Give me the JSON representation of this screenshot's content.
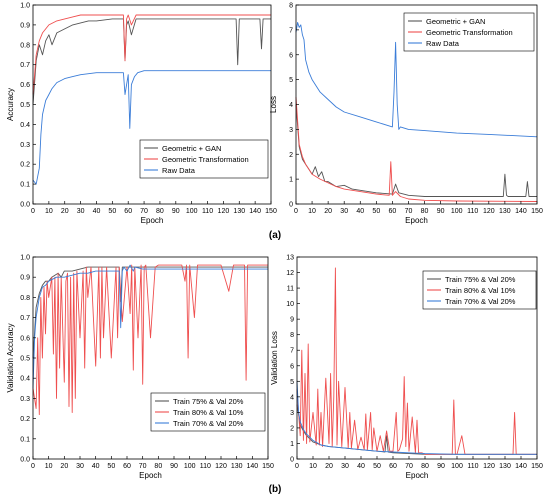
{
  "panel_labels": [
    "(a)",
    "(b)"
  ],
  "chart_data": [
    {
      "type": "line",
      "xlabel": "Epoch",
      "ylabel": "Accuracy",
      "xlim": [
        0,
        150
      ],
      "ylim": [
        0.0,
        1.0
      ],
      "xticks": [
        0,
        10,
        20,
        30,
        40,
        50,
        60,
        70,
        80,
        90,
        100,
        110,
        120,
        130,
        140,
        150
      ],
      "yticks": [
        0.0,
        0.1,
        0.2,
        0.3,
        0.4,
        0.5,
        0.6,
        0.7,
        0.8,
        0.9,
        1.0
      ],
      "ytick_labels": [
        "0.0",
        "0.1",
        "0.2",
        "0.3",
        "0.4",
        "0.5",
        "0.6",
        "0.7",
        "0.8",
        "0.9",
        "1.0"
      ],
      "legend_position": "bottom-right",
      "series": [
        {
          "name": "Geometric + GAN",
          "color": "#555555",
          "x": [
            0,
            2,
            4,
            6,
            8,
            10,
            12,
            15,
            20,
            25,
            30,
            35,
            40,
            50,
            57,
            58,
            59,
            60,
            62,
            65,
            70,
            80,
            90,
            100,
            110,
            120,
            128,
            129,
            130,
            132,
            140,
            143,
            144,
            145,
            148,
            150
          ],
          "y": [
            0.5,
            0.72,
            0.8,
            0.75,
            0.82,
            0.85,
            0.8,
            0.86,
            0.88,
            0.9,
            0.91,
            0.92,
            0.92,
            0.93,
            0.93,
            0.72,
            0.9,
            0.92,
            0.85,
            0.93,
            0.93,
            0.93,
            0.93,
            0.93,
            0.93,
            0.93,
            0.93,
            0.7,
            0.93,
            0.93,
            0.93,
            0.93,
            0.78,
            0.93,
            0.93,
            0.93
          ]
        },
        {
          "name": "Geometric Transformation",
          "color": "#ef4f4f",
          "x": [
            0,
            2,
            4,
            6,
            8,
            10,
            15,
            20,
            25,
            30,
            40,
            50,
            57,
            58,
            59,
            60,
            62,
            65,
            70,
            80,
            100,
            130,
            150
          ],
          "y": [
            0.55,
            0.75,
            0.82,
            0.86,
            0.88,
            0.9,
            0.92,
            0.93,
            0.94,
            0.95,
            0.95,
            0.95,
            0.95,
            0.72,
            0.93,
            0.95,
            0.9,
            0.95,
            0.95,
            0.95,
            0.95,
            0.95,
            0.95
          ]
        },
        {
          "name": "Raw Data",
          "color": "#3b7dd8",
          "x": [
            0,
            2,
            4,
            5,
            6,
            8,
            10,
            12,
            15,
            20,
            25,
            30,
            40,
            50,
            57,
            58,
            60,
            61,
            62,
            64,
            66,
            70,
            80,
            100,
            150
          ],
          "y": [
            0.12,
            0.1,
            0.18,
            0.35,
            0.45,
            0.52,
            0.55,
            0.58,
            0.61,
            0.63,
            0.64,
            0.65,
            0.66,
            0.66,
            0.66,
            0.55,
            0.65,
            0.38,
            0.6,
            0.64,
            0.66,
            0.67,
            0.67,
            0.67,
            0.67
          ]
        }
      ]
    },
    {
      "type": "line",
      "xlabel": "Epoch",
      "ylabel": "Loss",
      "xlim": [
        0,
        150
      ],
      "ylim": [
        0,
        8
      ],
      "xticks": [
        0,
        10,
        20,
        30,
        40,
        50,
        60,
        70,
        80,
        90,
        100,
        110,
        120,
        130,
        140,
        150
      ],
      "yticks": [
        0,
        1,
        2,
        3,
        4,
        5,
        6,
        7,
        8
      ],
      "ytick_labels": [
        "0",
        "1",
        "2",
        "3",
        "4",
        "5",
        "6",
        "7",
        "8"
      ],
      "legend_position": "top-right",
      "series": [
        {
          "name": "Geometric + GAN",
          "color": "#555555",
          "x": [
            0,
            2,
            4,
            6,
            8,
            10,
            12,
            14,
            16,
            18,
            20,
            25,
            30,
            35,
            40,
            50,
            60,
            62,
            64,
            70,
            80,
            100,
            129,
            130,
            131,
            132,
            140,
            143,
            144,
            145,
            150
          ],
          "y": [
            4.0,
            2.3,
            1.8,
            1.6,
            1.4,
            1.2,
            1.5,
            1.1,
            1.3,
            0.9,
            0.9,
            0.7,
            0.75,
            0.6,
            0.55,
            0.45,
            0.4,
            0.8,
            0.45,
            0.35,
            0.3,
            0.3,
            0.3,
            1.2,
            0.35,
            0.3,
            0.3,
            0.3,
            0.9,
            0.3,
            0.3
          ]
        },
        {
          "name": "Geometric Transformation",
          "color": "#ef4f4f",
          "x": [
            0,
            2,
            4,
            6,
            8,
            10,
            15,
            20,
            25,
            30,
            40,
            50,
            58,
            59,
            60,
            62,
            65,
            70,
            80,
            100,
            150
          ],
          "y": [
            4.3,
            2.4,
            1.9,
            1.6,
            1.4,
            1.2,
            1.0,
            0.85,
            0.7,
            0.6,
            0.5,
            0.4,
            0.35,
            1.7,
            0.35,
            0.5,
            0.3,
            0.2,
            0.15,
            0.12,
            0.1
          ]
        },
        {
          "name": "Raw Data",
          "color": "#3b7dd8",
          "x": [
            0,
            1,
            2,
            3,
            4,
            5,
            6,
            8,
            10,
            15,
            20,
            25,
            30,
            40,
            50,
            60,
            61,
            62,
            63,
            64,
            65,
            70,
            80,
            100,
            120,
            150
          ],
          "y": [
            6.9,
            7.3,
            7.1,
            7.2,
            6.8,
            6.6,
            5.8,
            5.3,
            5.0,
            4.5,
            4.2,
            3.9,
            3.7,
            3.5,
            3.3,
            3.1,
            4.5,
            6.5,
            4.0,
            3.0,
            3.1,
            3.0,
            2.95,
            2.85,
            2.8,
            2.7
          ]
        }
      ]
    },
    {
      "type": "line",
      "xlabel": "Epoch",
      "ylabel": "Validation Accuracy",
      "xlim": [
        0,
        150
      ],
      "ylim": [
        0.0,
        1.0
      ],
      "xticks": [
        0,
        10,
        20,
        30,
        40,
        50,
        60,
        70,
        80,
        90,
        100,
        110,
        120,
        130,
        140,
        150
      ],
      "yticks": [
        0.0,
        0.1,
        0.2,
        0.3,
        0.4,
        0.5,
        0.6,
        0.7,
        0.8,
        0.9,
        1.0
      ],
      "ytick_labels": [
        "0.0",
        "0.1",
        "0.2",
        "0.3",
        "0.4",
        "0.5",
        "0.6",
        "0.7",
        "0.8",
        "0.9",
        "1.0"
      ],
      "legend_position": "bottom-right",
      "series": [
        {
          "name": "Train 75% & Val 20%",
          "color": "#555555",
          "x": [
            0,
            2,
            4,
            6,
            8,
            10,
            12,
            14,
            16,
            18,
            20,
            25,
            30,
            35,
            40,
            50,
            55,
            56,
            57,
            60,
            65,
            70,
            80,
            100,
            150
          ],
          "y": [
            0.5,
            0.75,
            0.82,
            0.86,
            0.88,
            0.88,
            0.9,
            0.91,
            0.92,
            0.9,
            0.93,
            0.93,
            0.94,
            0.95,
            0.95,
            0.95,
            0.95,
            0.78,
            0.95,
            0.95,
            0.95,
            0.95,
            0.95,
            0.95,
            0.95
          ]
        },
        {
          "name": "Train 80% & Val 10%",
          "color": "#ef4f4f",
          "x": [
            0,
            2,
            3,
            4,
            5,
            6,
            7,
            8,
            9,
            10,
            12,
            13,
            14,
            15,
            16,
            17,
            18,
            20,
            21,
            22,
            23,
            24,
            25,
            26,
            27,
            28,
            30,
            32,
            33,
            34,
            35,
            37,
            40,
            42,
            43,
            44,
            45,
            47,
            50,
            53,
            54,
            55,
            57,
            60,
            62,
            63,
            64,
            65,
            67,
            69,
            70,
            71,
            72,
            75,
            78,
            80,
            85,
            90,
            95,
            97,
            98,
            99,
            100,
            103,
            105,
            108,
            110,
            120,
            125,
            128,
            130,
            135,
            136,
            137,
            138,
            140,
            145,
            150
          ],
          "y": [
            0.35,
            0.25,
            0.6,
            0.22,
            0.8,
            0.5,
            0.85,
            0.62,
            0.88,
            0.8,
            0.9,
            0.52,
            0.9,
            0.3,
            0.92,
            0.45,
            0.9,
            0.38,
            0.88,
            0.92,
            0.26,
            0.9,
            0.23,
            0.92,
            0.3,
            0.93,
            0.6,
            0.93,
            0.45,
            0.95,
            0.8,
            0.95,
            0.46,
            0.95,
            0.5,
            0.95,
            0.6,
            0.95,
            0.5,
            0.95,
            0.6,
            0.95,
            0.68,
            0.95,
            0.72,
            0.96,
            0.44,
            0.95,
            0.6,
            0.96,
            0.37,
            0.95,
            0.96,
            0.6,
            0.95,
            0.96,
            0.96,
            0.96,
            0.96,
            0.88,
            0.96,
            0.5,
            0.96,
            0.7,
            0.96,
            0.96,
            0.96,
            0.96,
            0.83,
            0.96,
            0.96,
            0.96,
            0.39,
            0.96,
            0.96,
            0.96,
            0.96,
            0.96
          ]
        },
        {
          "name": "Train 70% & Val 20%",
          "color": "#3b7dd8",
          "x": [
            0,
            1,
            2,
            4,
            6,
            8,
            10,
            15,
            20,
            25,
            30,
            35,
            40,
            50,
            55,
            56,
            57,
            58,
            60,
            62,
            64,
            65,
            70,
            80,
            100,
            150
          ],
          "y": [
            0.35,
            0.6,
            0.7,
            0.8,
            0.85,
            0.86,
            0.88,
            0.9,
            0.9,
            0.91,
            0.92,
            0.92,
            0.93,
            0.93,
            0.93,
            0.65,
            0.93,
            0.95,
            0.93,
            0.96,
            0.93,
            0.95,
            0.94,
            0.94,
            0.94,
            0.94
          ]
        }
      ]
    },
    {
      "type": "line",
      "xlabel": "Epoch",
      "ylabel": "Validation Loss",
      "xlim": [
        0,
        150
      ],
      "ylim": [
        0,
        13
      ],
      "xticks": [
        0,
        10,
        20,
        30,
        40,
        50,
        60,
        70,
        80,
        90,
        100,
        110,
        120,
        130,
        140,
        150
      ],
      "yticks": [
        0,
        1,
        2,
        3,
        4,
        5,
        6,
        7,
        8,
        9,
        10,
        11,
        12,
        13
      ],
      "ytick_labels": [
        "0",
        "1",
        "2",
        "3",
        "4",
        "5",
        "6",
        "7",
        "8",
        "9",
        "10",
        "11",
        "12",
        "13"
      ],
      "legend_position": "top-right",
      "series": [
        {
          "name": "Train 75% & Val 20%",
          "color": "#555555",
          "x": [
            0,
            2,
            4,
            6,
            8,
            10,
            15,
            20,
            30,
            40,
            50,
            55,
            56,
            57,
            60,
            70,
            80,
            100,
            150
          ],
          "y": [
            3.5,
            2.2,
            1.8,
            1.5,
            1.3,
            1.1,
            0.9,
            0.8,
            0.7,
            0.6,
            0.5,
            0.45,
            1.5,
            0.45,
            0.4,
            0.35,
            0.3,
            0.3,
            0.3
          ]
        },
        {
          "name": "Train 80% & Val 10%",
          "color": "#ef4f4f",
          "x": [
            0,
            2,
            3,
            4,
            5,
            6,
            7,
            8,
            10,
            12,
            13,
            14,
            15,
            16,
            18,
            20,
            21,
            22,
            23,
            24,
            25,
            26,
            28,
            30,
            32,
            33,
            34,
            36,
            38,
            40,
            42,
            43,
            44,
            46,
            47,
            48,
            50,
            52,
            54,
            56,
            58,
            60,
            62,
            63,
            64,
            66,
            67,
            68,
            69,
            70,
            72,
            74,
            75,
            76,
            78,
            80,
            85,
            90,
            95,
            97,
            98,
            99,
            100,
            103,
            105,
            108,
            110,
            120,
            125,
            130,
            135,
            136,
            137,
            138,
            140,
            145,
            150
          ],
          "y": [
            4.5,
            1.5,
            7.0,
            1.2,
            5.5,
            1.0,
            7.4,
            1.1,
            3.0,
            0.9,
            4.5,
            0.9,
            3.0,
            0.8,
            5.2,
            1.0,
            5.5,
            0.8,
            4.0,
            12.3,
            0.9,
            5.0,
            0.8,
            4.6,
            0.7,
            3.0,
            0.7,
            2.5,
            0.6,
            1.4,
            0.6,
            2.9,
            0.6,
            3.0,
            0.6,
            2.0,
            0.5,
            1.5,
            0.5,
            1.8,
            0.5,
            0.5,
            3.0,
            0.5,
            0.6,
            1.3,
            5.3,
            0.8,
            3.6,
            0.5,
            2.7,
            0.4,
            2.5,
            0.4,
            0.4,
            0.3,
            0.3,
            0.3,
            0.3,
            0.3,
            3.8,
            0.3,
            0.3,
            1.5,
            0.3,
            0.3,
            0.3,
            0.3,
            0.3,
            0.3,
            0.3,
            3.0,
            0.3,
            0.3,
            0.3,
            0.3,
            0.3
          ]
        },
        {
          "name": "Train 70% & Val 20%",
          "color": "#3b7dd8",
          "x": [
            0,
            1,
            2,
            4,
            6,
            8,
            10,
            15,
            20,
            30,
            40,
            50,
            60,
            70,
            80,
            100,
            150
          ],
          "y": [
            5.0,
            3.0,
            2.4,
            1.9,
            1.6,
            1.4,
            1.2,
            0.9,
            0.8,
            0.7,
            0.6,
            0.5,
            0.45,
            0.4,
            0.35,
            0.3,
            0.3
          ]
        }
      ]
    }
  ]
}
